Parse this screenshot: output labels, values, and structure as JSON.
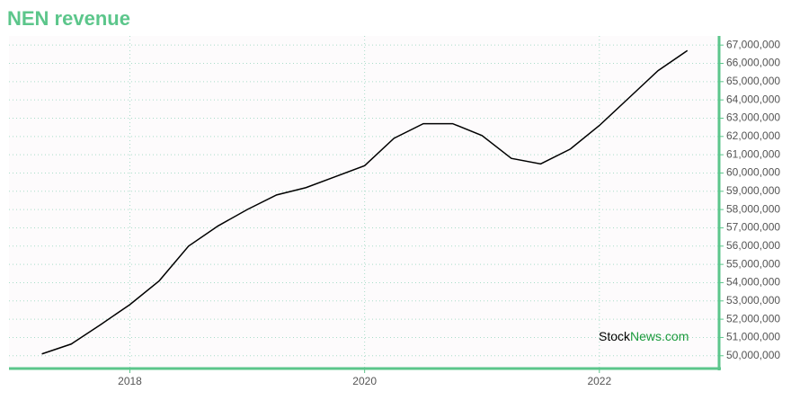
{
  "chart_data": {
    "type": "line",
    "title": "NEN revenue",
    "x": [
      2017.25,
      2017.5,
      2017.75,
      2018.0,
      2018.25,
      2018.5,
      2018.75,
      2019.0,
      2019.25,
      2019.5,
      2019.75,
      2020.0,
      2020.25,
      2020.5,
      2020.75,
      2021.0,
      2021.25,
      2021.5,
      2021.75,
      2022.0,
      2022.25,
      2022.5,
      2022.75
    ],
    "series": [
      {
        "color": "#000000",
        "values": [
          50100000,
          50640000,
          51700000,
          52800000,
          54100000,
          56000000,
          57100000,
          58000000,
          58800000,
          59200000,
          59800000,
          60400000,
          61900000,
          62700000,
          62700000,
          62050000,
          60800000,
          60500000,
          61300000,
          62600000,
          64100000,
          65600000,
          66700000
        ]
      }
    ],
    "xlim": [
      2016.97,
      2023.02
    ],
    "xticks": [
      2018,
      2020,
      2022
    ],
    "ylim": [
      49300000,
      67500000
    ],
    "yticks": [
      {
        "value": 50000000,
        "label": "50,000,000"
      },
      {
        "value": 51000000,
        "label": "51,000,000"
      },
      {
        "value": 52000000,
        "label": "52,000,000"
      },
      {
        "value": 53000000,
        "label": "53,000,000"
      },
      {
        "value": 54000000,
        "label": "54,000,000"
      },
      {
        "value": 55000000,
        "label": "55,000,000"
      },
      {
        "value": 56000000,
        "label": "56,000,000"
      },
      {
        "value": 57000000,
        "label": "57,000,000"
      },
      {
        "value": 58000000,
        "label": "58,000,000"
      },
      {
        "value": 59000000,
        "label": "59,000,000"
      },
      {
        "value": 60000000,
        "label": "60,000,000"
      },
      {
        "value": 61000000,
        "label": "61,000,000"
      },
      {
        "value": 62000000,
        "label": "62,000,000"
      },
      {
        "value": 63000000,
        "label": "63,000,000"
      },
      {
        "value": 64000000,
        "label": "64,000,000"
      },
      {
        "value": 65000000,
        "label": "65,000,000"
      },
      {
        "value": 66000000,
        "label": "66,000,000"
      },
      {
        "value": 67000000,
        "label": "67,000,000"
      }
    ],
    "grid": true,
    "axis_color": "#5cc68b",
    "watermark": [
      "Stock",
      "News.com"
    ]
  }
}
